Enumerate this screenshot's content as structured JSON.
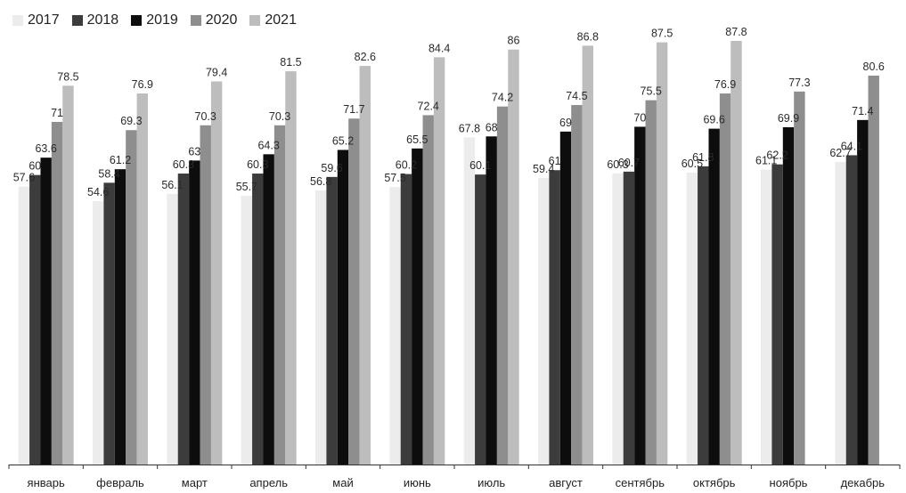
{
  "chart_data": {
    "type": "bar",
    "title": "",
    "xlabel": "",
    "ylabel": "",
    "ylim": [
      0,
      90
    ],
    "grid": false,
    "legend": "top-left",
    "categories": [
      "январь",
      "февраль",
      "март",
      "апрель",
      "май",
      "июнь",
      "июль",
      "август",
      "сентябрь",
      "октябрь",
      "ноябрь",
      "декабрь"
    ],
    "series": [
      {
        "name": "2017",
        "color": "#ececec",
        "values": [
          57.6,
          54.6,
          56.1,
          55.7,
          56.8,
          57.5,
          67.8,
          59.4,
          60.3,
          60.5,
          61.1,
          62.7
        ],
        "labels": [
          "57.6",
          "54.6",
          "56.1",
          "55.7",
          "56.8",
          "57.5",
          "67.8",
          "59.4",
          "60.3",
          "60.5",
          "61.1",
          "62.7"
        ]
      },
      {
        "name": "2018",
        "color": "#3c3c3c",
        "values": [
          60,
          58.4,
          60.3,
          60.3,
          59.6,
          60.2,
          60.1,
          61,
          60.7,
          61.8,
          62.2,
          64.1
        ],
        "labels": [
          "60",
          "58.4",
          "60.3",
          "60.3",
          "59.6",
          "60.2",
          "60.1",
          "61",
          "60.7",
          "61.8",
          "62.2",
          "64.1"
        ]
      },
      {
        "name": "2019",
        "color": "#0d0d0d",
        "values": [
          63.6,
          61.2,
          63,
          64.3,
          65.2,
          65.5,
          68,
          69,
          70,
          69.6,
          69.9,
          71.4
        ],
        "labels": [
          "63.6",
          "61.2",
          "63",
          "64.3",
          "65.2",
          "65.5",
          "68",
          "69",
          "70",
          "69.6",
          "69.9",
          "71.4"
        ]
      },
      {
        "name": "2020",
        "color": "#8e8e8e",
        "values": [
          71,
          69.3,
          70.3,
          70.3,
          71.7,
          72.4,
          74.2,
          74.5,
          75.5,
          76.9,
          77.3,
          80.6
        ],
        "labels": [
          "71",
          "69.3",
          "70.3",
          "70.3",
          "71.7",
          "72.4",
          "74.2",
          "74.5",
          "75.5",
          "76.9",
          "77.3",
          "80.6"
        ]
      },
      {
        "name": "2021",
        "color": "#bdbdbd",
        "values": [
          78.5,
          76.9,
          79.4,
          81.5,
          82.6,
          84.4,
          86,
          86.8,
          87.5,
          87.8,
          null,
          null
        ],
        "labels": [
          "78.5",
          "76.9",
          "79.4",
          "81.5",
          "82.6",
          "84.4",
          "86",
          "86.8",
          "87.5",
          "87.8",
          "",
          ""
        ]
      }
    ]
  }
}
